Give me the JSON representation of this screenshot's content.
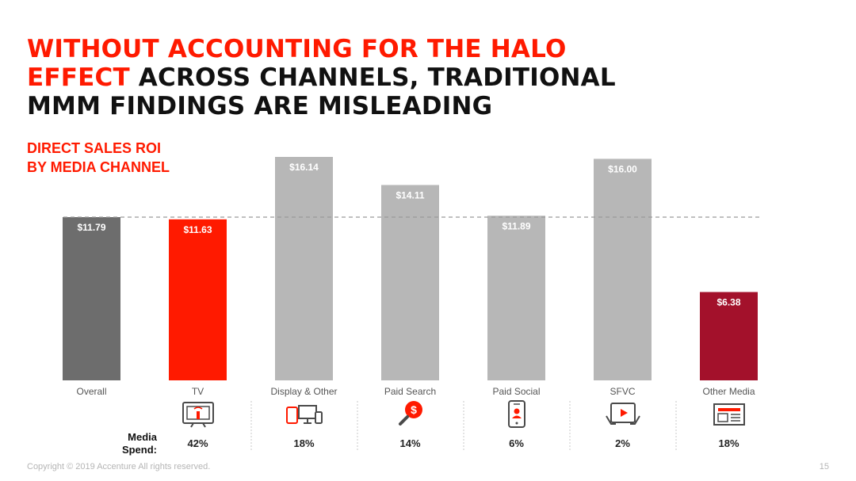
{
  "title": {
    "line1": "WITHOUT ACCOUNTING FOR THE HALO",
    "line2_highlight": "EFFECT",
    "line2_rest": " ACROSS CHANNELS, TRADITIONAL",
    "line3": "MMM FINDINGS ARE MISLEADING"
  },
  "subtitle": {
    "line1": "DIRECT SALES ROI",
    "line2": "BY MEDIA CHANNEL"
  },
  "chart_data": {
    "type": "bar",
    "categories": [
      "Overall",
      "TV",
      "Display & Other",
      "Paid Search",
      "Paid Social",
      "SFVC",
      "Other Media"
    ],
    "values": [
      11.79,
      11.63,
      16.14,
      14.11,
      11.89,
      16.0,
      6.38
    ],
    "data_labels": [
      "$11.79",
      "$11.63",
      "$16.14",
      "$14.11",
      "$11.89",
      "$16.00",
      "$6.38"
    ],
    "colors": [
      "#6d6d6d",
      "#ff1a00",
      "#b7b7b7",
      "#b7b7b7",
      "#b7b7b7",
      "#b7b7b7",
      "#a3112b"
    ],
    "reference_line": {
      "value": 11.79,
      "style": "dashed"
    },
    "ylim": [
      0,
      16.14
    ],
    "grid": false,
    "media_spend": {
      "label_line1": "Media",
      "label_line2": "Spend:",
      "categories": [
        "TV",
        "Display & Other",
        "Paid Search",
        "Paid Social",
        "SFVC",
        "Other Media"
      ],
      "values": [
        "42%",
        "18%",
        "14%",
        "6%",
        "2%",
        "18%"
      ],
      "icons": [
        "tv-icon",
        "devices-icon",
        "search-dollar-icon",
        "smartphone-icon",
        "tablet-video-icon",
        "newspaper-icon"
      ]
    }
  },
  "footer": {
    "copyright": "Copyright © 2019 Accenture All rights reserved.",
    "page": "15"
  }
}
